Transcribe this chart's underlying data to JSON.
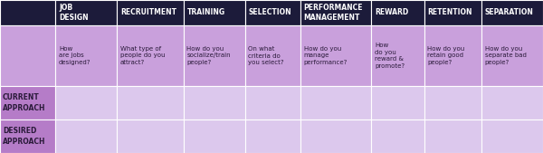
{
  "header_bg": "#1c1b3a",
  "header_text_color": "#ffffff",
  "row1_bg": "#c9a0dc",
  "row2_bg": "#dcc8ed",
  "label_bg": "#b57cc8",
  "border_color": "#ffffff",
  "text_color": "#2a1a3a",
  "headers": [
    "JOB\nDESIGN",
    "RECRUITMENT",
    "TRAINING",
    "SELECTION",
    "PERFORMANCE\nMANAGEMENT",
    "REWARD",
    "RETENTION",
    "SEPARATION"
  ],
  "row1_cells": [
    "How\nare jobs\ndesigned?",
    "What type of\npeople do you\nattract?",
    "How do you\nsocialize/train\npeople?",
    "On what\ncriteria do\nyou select?",
    "How do you\nmanage\nperformance?",
    "How\ndo you\nreward &\npromote?",
    "How do you\nretain good\npeople?",
    "How do you\nseparate bad\npeople?"
  ],
  "row_labels": [
    "CURRENT\nAPPROACH",
    "DESIRED\nAPPROACH"
  ],
  "figsize": [
    6.0,
    1.69
  ],
  "dpi": 100,
  "header_fontsize": 5.5,
  "cell_fontsize": 5.0,
  "label_fontsize": 5.5
}
